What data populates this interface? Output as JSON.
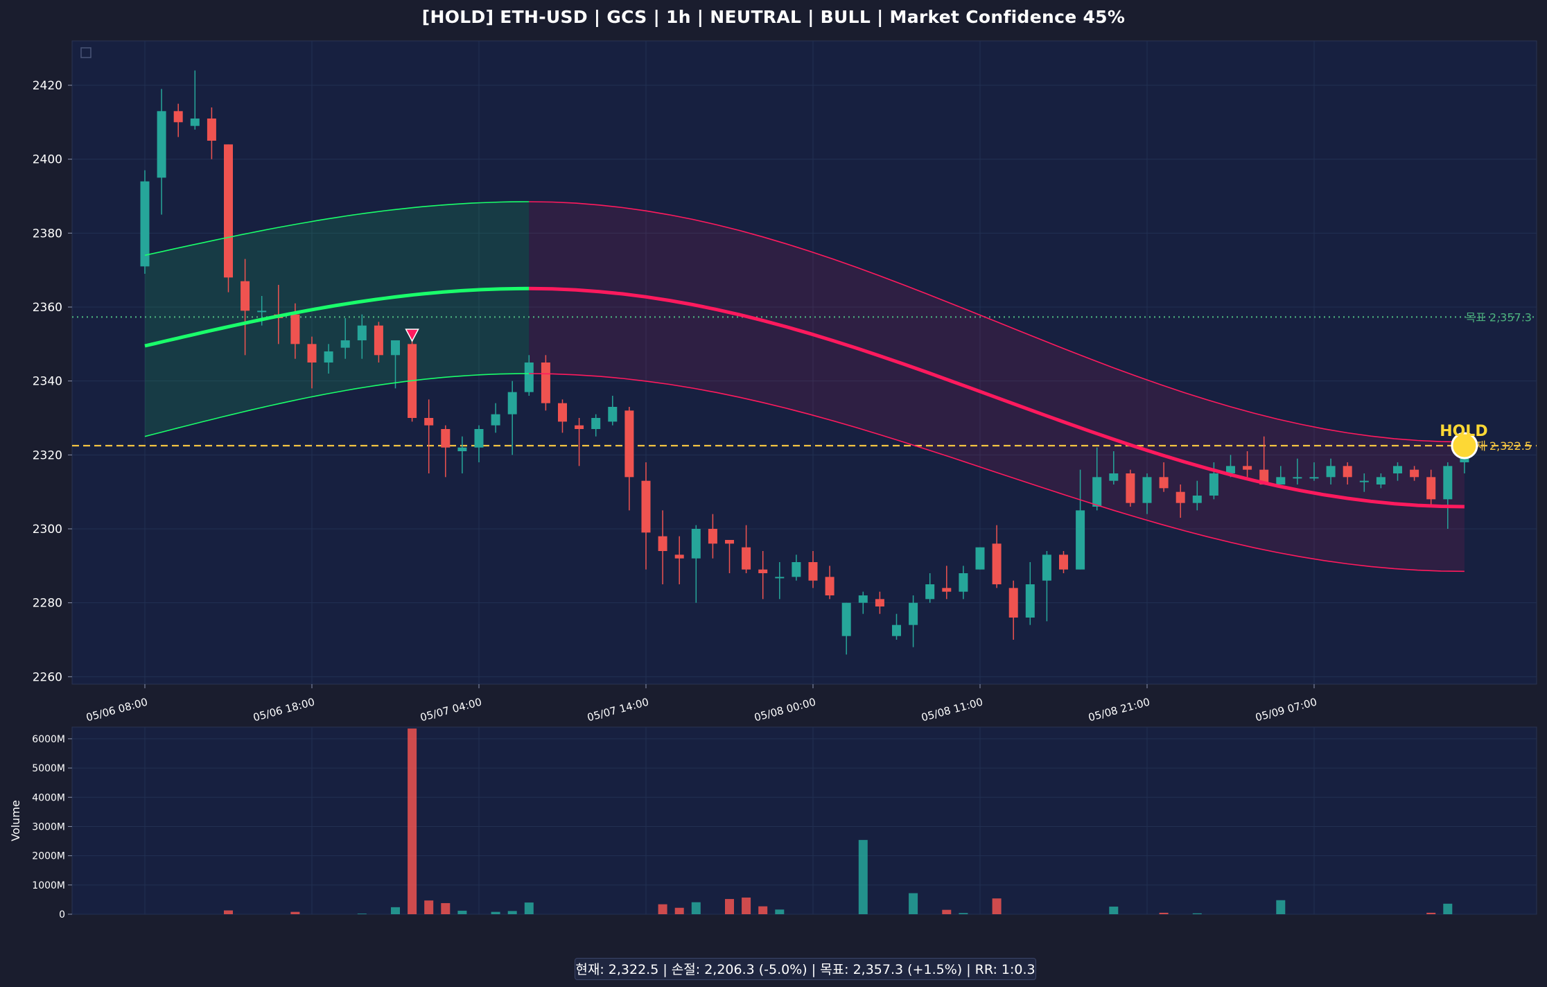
{
  "title": "[HOLD] ETH-USD  |  GCS | 1h  |  NEUTRAL | BULL  |  Market Confidence 45%",
  "footer": "현재: 2,322.5  |  손절: 2,206.3 (-5.0%)  |  목표: 2,357.3 (+1.5%)  |  RR: 1:0.3",
  "colors": {
    "background": "#1a1d2e",
    "panel": "#172040",
    "up": "#26a69a",
    "down": "#ef5350",
    "bull_line": "#1aff6b",
    "bear_line": "#ff1a5e",
    "current_line": "#f5c542",
    "target_line": "#4caf7d",
    "hold_marker": "#fdd835"
  },
  "chart_data": [
    {
      "type": "candlestick",
      "symbol": "ETH-USD",
      "interval": "1h",
      "ylim": [
        2258,
        2432
      ],
      "yticks": [
        2260,
        2280,
        2300,
        2320,
        2340,
        2360,
        2380,
        2400,
        2420
      ],
      "x_tick_labels": [
        {
          "index": 0,
          "label": "05/06 08:00"
        },
        {
          "index": 10,
          "label": "05/06 18:00"
        },
        {
          "index": 20,
          "label": "05/07 04:00"
        },
        {
          "index": 30,
          "label": "05/07 14:00"
        },
        {
          "index": 40,
          "label": "05/08 00:00"
        },
        {
          "index": 50,
          "label": "05/08 11:00"
        },
        {
          "index": 60,
          "label": "05/08 21:00"
        },
        {
          "index": 70,
          "label": "05/09 07:00"
        }
      ],
      "n_slots": 80,
      "candles": [
        {
          "o": 2371,
          "h": 2397,
          "l": 2369,
          "c": 2394
        },
        {
          "o": 2395,
          "h": 2419,
          "l": 2385,
          "c": 2413
        },
        {
          "o": 2413,
          "h": 2415,
          "l": 2406,
          "c": 2410
        },
        {
          "o": 2409,
          "h": 2424,
          "l": 2408,
          "c": 2411
        },
        {
          "o": 2411,
          "h": 2414,
          "l": 2400,
          "c": 2405
        },
        {
          "o": 2404,
          "h": 2404,
          "l": 2364,
          "c": 2368
        },
        {
          "o": 2367,
          "h": 2373,
          "l": 2347,
          "c": 2359
        },
        {
          "o": 2359,
          "h": 2363,
          "l": 2355,
          "c": 2359
        },
        {
          "o": 2358,
          "h": 2366,
          "l": 2350,
          "c": 2357
        },
        {
          "o": 2358,
          "h": 2361,
          "l": 2346,
          "c": 2350
        },
        {
          "o": 2350,
          "h": 2352,
          "l": 2338,
          "c": 2345
        },
        {
          "o": 2345,
          "h": 2350,
          "l": 2342,
          "c": 2348
        },
        {
          "o": 2349,
          "h": 2357,
          "l": 2346,
          "c": 2351
        },
        {
          "o": 2351,
          "h": 2358,
          "l": 2346,
          "c": 2355
        },
        {
          "o": 2355,
          "h": 2356,
          "l": 2345,
          "c": 2347
        },
        {
          "o": 2347,
          "h": 2351,
          "l": 2338,
          "c": 2351
        },
        {
          "o": 2350,
          "h": 2351,
          "l": 2329,
          "c": 2330
        },
        {
          "o": 2330,
          "h": 2335,
          "l": 2315,
          "c": 2328
        },
        {
          "o": 2327,
          "h": 2328,
          "l": 2314,
          "c": 2322
        },
        {
          "o": 2321,
          "h": 2325,
          "l": 2315,
          "c": 2322
        },
        {
          "o": 2322,
          "h": 2328,
          "l": 2318,
          "c": 2327
        },
        {
          "o": 2328,
          "h": 2334,
          "l": 2326,
          "c": 2331
        },
        {
          "o": 2331,
          "h": 2340,
          "l": 2320,
          "c": 2337
        },
        {
          "o": 2337,
          "h": 2347,
          "l": 2336,
          "c": 2345
        },
        {
          "o": 2345,
          "h": 2347,
          "l": 2332,
          "c": 2334
        },
        {
          "o": 2334,
          "h": 2335,
          "l": 2326,
          "c": 2329
        },
        {
          "o": 2328,
          "h": 2330,
          "l": 2317,
          "c": 2327
        },
        {
          "o": 2327,
          "h": 2331,
          "l": 2325,
          "c": 2330
        },
        {
          "o": 2329,
          "h": 2336,
          "l": 2328,
          "c": 2333
        },
        {
          "o": 2332,
          "h": 2333,
          "l": 2305,
          "c": 2314
        },
        {
          "o": 2313,
          "h": 2318,
          "l": 2289,
          "c": 2299
        },
        {
          "o": 2298,
          "h": 2305,
          "l": 2285,
          "c": 2294
        },
        {
          "o": 2293,
          "h": 2298,
          "l": 2285,
          "c": 2292
        },
        {
          "o": 2292,
          "h": 2301,
          "l": 2280,
          "c": 2300
        },
        {
          "o": 2300,
          "h": 2304,
          "l": 2292,
          "c": 2296
        },
        {
          "o": 2297,
          "h": 2297,
          "l": 2288,
          "c": 2296
        },
        {
          "o": 2295,
          "h": 2301,
          "l": 2288,
          "c": 2289
        },
        {
          "o": 2289,
          "h": 2294,
          "l": 2281,
          "c": 2288
        },
        {
          "o": 2287,
          "h": 2291,
          "l": 2281,
          "c": 2287
        },
        {
          "o": 2287,
          "h": 2293,
          "l": 2286,
          "c": 2291
        },
        {
          "o": 2291,
          "h": 2294,
          "l": 2284,
          "c": 2286
        },
        {
          "o": 2287,
          "h": 2290,
          "l": 2281,
          "c": 2282
        },
        {
          "o": 2271,
          "h": 2280,
          "l": 2266,
          "c": 2280
        },
        {
          "o": 2280,
          "h": 2283,
          "l": 2277,
          "c": 2282
        },
        {
          "o": 2281,
          "h": 2283,
          "l": 2277,
          "c": 2279
        },
        {
          "o": 2271,
          "h": 2277,
          "l": 2270,
          "c": 2274
        },
        {
          "o": 2274,
          "h": 2282,
          "l": 2268,
          "c": 2280
        },
        {
          "o": 2281,
          "h": 2288,
          "l": 2280,
          "c": 2285
        },
        {
          "o": 2284,
          "h": 2290,
          "l": 2281,
          "c": 2283
        },
        {
          "o": 2283,
          "h": 2290,
          "l": 2281,
          "c": 2288
        },
        {
          "o": 2289,
          "h": 2295,
          "l": 2289,
          "c": 2295
        },
        {
          "o": 2296,
          "h": 2301,
          "l": 2284,
          "c": 2285
        },
        {
          "o": 2284,
          "h": 2286,
          "l": 2270,
          "c": 2276
        },
        {
          "o": 2276,
          "h": 2291,
          "l": 2274,
          "c": 2285
        },
        {
          "o": 2286,
          "h": 2294,
          "l": 2275,
          "c": 2293
        },
        {
          "o": 2293,
          "h": 2294,
          "l": 2288,
          "c": 2289
        },
        {
          "o": 2289,
          "h": 2316,
          "l": 2289,
          "c": 2305
        },
        {
          "o": 2306,
          "h": 2322,
          "l": 2305,
          "c": 2314
        },
        {
          "o": 2313,
          "h": 2321,
          "l": 2312,
          "c": 2315
        },
        {
          "o": 2315,
          "h": 2316,
          "l": 2306,
          "c": 2307
        },
        {
          "o": 2307,
          "h": 2315,
          "l": 2304,
          "c": 2314
        },
        {
          "o": 2314,
          "h": 2318,
          "l": 2310,
          "c": 2311
        },
        {
          "o": 2310,
          "h": 2312,
          "l": 2303,
          "c": 2307
        },
        {
          "o": 2307,
          "h": 2313,
          "l": 2305,
          "c": 2309
        },
        {
          "o": 2309,
          "h": 2318,
          "l": 2308,
          "c": 2315
        },
        {
          "o": 2315,
          "h": 2320,
          "l": 2314,
          "c": 2317
        },
        {
          "o": 2317,
          "h": 2321,
          "l": 2314,
          "c": 2316
        },
        {
          "o": 2316,
          "h": 2325,
          "l": 2312,
          "c": 2312
        },
        {
          "o": 2312,
          "h": 2317,
          "l": 2312,
          "c": 2314
        },
        {
          "o": 2314,
          "h": 2319,
          "l": 2312,
          "c": 2314
        },
        {
          "o": 2314,
          "h": 2318,
          "l": 2313,
          "c": 2314
        },
        {
          "o": 2314,
          "h": 2319,
          "l": 2312,
          "c": 2317
        },
        {
          "o": 2317,
          "h": 2318,
          "l": 2312,
          "c": 2314
        },
        {
          "o": 2313,
          "h": 2315,
          "l": 2310,
          "c": 2313
        },
        {
          "o": 2312,
          "h": 2315,
          "l": 2311,
          "c": 2314
        },
        {
          "o": 2315,
          "h": 2318,
          "l": 2313,
          "c": 2317
        },
        {
          "o": 2316,
          "h": 2317,
          "l": 2313,
          "c": 2314
        },
        {
          "o": 2314,
          "h": 2316,
          "l": 2306,
          "c": 2308
        },
        {
          "o": 2308,
          "h": 2318,
          "l": 2300,
          "c": 2317
        },
        {
          "o": 2318,
          "h": 2322,
          "l": 2315,
          "c": 2322
        }
      ],
      "forecast": {
        "split_index": 23,
        "bull_center": [
          2349.5,
          2365
        ],
        "bull_upper": [
          2374,
          2388.5
        ],
        "bull_lower": [
          2325,
          2342
        ],
        "bear_center": [
          2365,
          2306
        ],
        "bear_upper": [
          2388.5,
          2323.5
        ],
        "bear_lower": [
          2342,
          2288.5
        ]
      },
      "levels": [
        {
          "name": "target",
          "value": 2357.3,
          "label": "목표 2,357.3",
          "style": "dotted"
        },
        {
          "name": "current",
          "value": 2322.5,
          "label": "현재 2,322.5",
          "style": "dashed"
        }
      ],
      "signals": [
        {
          "index": 16,
          "type": "sell",
          "marker": "triangle-down",
          "price": 2352.5
        }
      ],
      "hold_marker": {
        "index": 79,
        "price": 2322.5,
        "label": "HOLD"
      }
    },
    {
      "type": "bar",
      "ylabel": "Volume",
      "ylim": [
        0,
        6400
      ],
      "unit": "M",
      "yticks": [
        0,
        1000,
        2000,
        3000,
        4000,
        5000,
        6000
      ],
      "ytick_labels": [
        "0",
        "1000M",
        "2000M",
        "3000M",
        "4000M",
        "5000M",
        "6000M"
      ],
      "values": [
        0,
        0,
        0,
        0,
        0,
        130,
        0,
        0,
        0,
        80,
        0,
        0,
        0,
        20,
        0,
        240,
        6350,
        470,
        380,
        120,
        0,
        80,
        110,
        400,
        0,
        0,
        0,
        0,
        0,
        0,
        0,
        340,
        220,
        410,
        0,
        520,
        570,
        270,
        160,
        0,
        0,
        0,
        0,
        2540,
        0,
        0,
        720,
        0,
        150,
        40,
        0,
        540,
        0,
        0,
        0,
        0,
        0,
        0,
        260,
        0,
        0,
        50,
        0,
        30,
        0,
        0,
        0,
        0,
        480,
        0,
        0,
        0,
        0,
        0,
        0,
        0,
        0,
        50,
        360,
        0
      ]
    }
  ]
}
